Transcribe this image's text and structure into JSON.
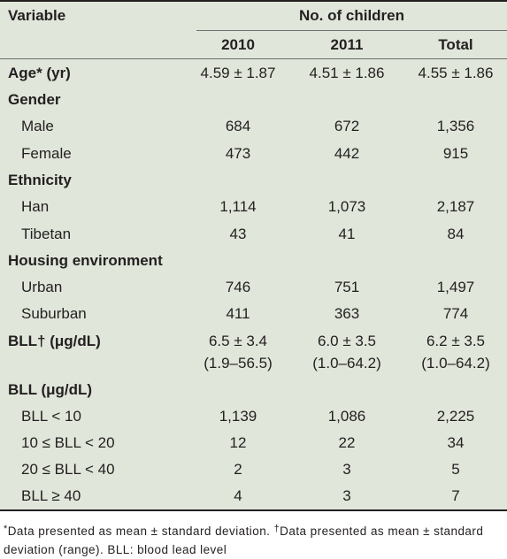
{
  "header": {
    "variable_label": "Variable",
    "group_label": "No. of children",
    "columns": [
      "2010",
      "2011",
      "Total"
    ]
  },
  "rows": [
    {
      "label": "Age* (yr)",
      "values": [
        "4.59 ± 1.87",
        "4.51 ± 1.86",
        "4.55 ± 1.86"
      ]
    },
    {
      "label": "Gender"
    },
    {
      "label": "Male",
      "values": [
        "684",
        "672",
        "1,356"
      ]
    },
    {
      "label": "Female",
      "values": [
        "473",
        "442",
        "915"
      ]
    },
    {
      "label": "Ethnicity"
    },
    {
      "label": "Han",
      "values": [
        "1,114",
        "1,073",
        "2,187"
      ]
    },
    {
      "label": "Tibetan",
      "values": [
        "43",
        "41",
        "84"
      ]
    },
    {
      "label": "Housing environment"
    },
    {
      "label": "Urban",
      "values": [
        "746",
        "751",
        "1,497"
      ]
    },
    {
      "label": "Suburban",
      "values": [
        "411",
        "363",
        "774"
      ]
    },
    {
      "label": "BLL† (μg/dL)",
      "values": [
        "6.5 ± 3.4",
        "6.0 ± 3.5",
        "6.2 ± 3.5"
      ],
      "ranges": [
        "(1.9–56.5)",
        "(1.0–64.2)",
        "(1.0–64.2)"
      ]
    },
    {
      "label": "BLL (μg/dL)"
    },
    {
      "label": "BLL < 10",
      "values": [
        "1,139",
        "1,086",
        "2,225"
      ]
    },
    {
      "label": "10 ≤ BLL < 20",
      "values": [
        "12",
        "22",
        "34"
      ]
    },
    {
      "label": "20 ≤ BLL < 40",
      "values": [
        "2",
        "3",
        "5"
      ]
    },
    {
      "label": "BLL ≥ 40",
      "values": [
        "4",
        "3",
        "7"
      ]
    }
  ],
  "footnote": {
    "mark1": "*",
    "text1": "Data presented as mean ± standard deviation. ",
    "mark2": "†",
    "text2": "Data presented as mean ± standard deviation (range). BLL: blood lead level"
  }
}
